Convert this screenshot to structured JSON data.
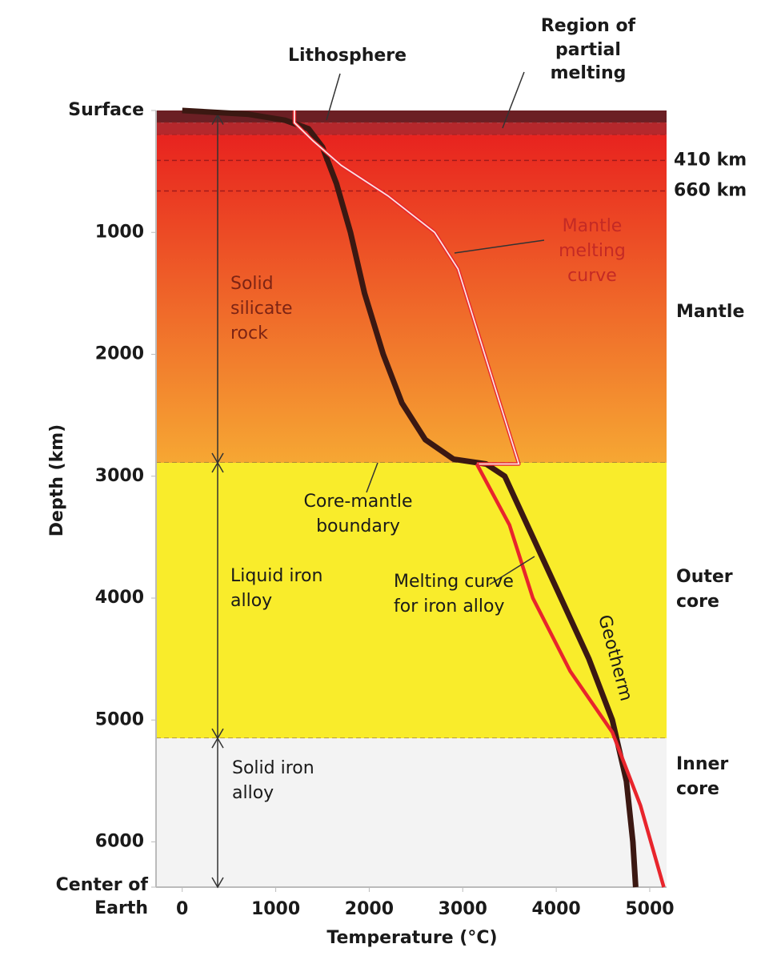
{
  "chart_data": {
    "type": "line",
    "xlabel": "Temperature (°C)",
    "ylabel": "Depth (km)",
    "xlim": [
      -280,
      5180
    ],
    "ylim": [
      0,
      6371
    ],
    "y_inverted": true,
    "xticks": [
      0,
      1000,
      2000,
      3000,
      4000,
      5000
    ],
    "yticks": [
      {
        "value": 0,
        "label": "Surface"
      },
      1000,
      2000,
      3000,
      4000,
      5000,
      6000,
      {
        "value": 6371,
        "label": "Center of Earth"
      }
    ],
    "layers": [
      {
        "name": "Lithosphere",
        "top": 0,
        "bottom": 100,
        "color": "#6b1f24"
      },
      {
        "name": "Region of partial melting",
        "top": 100,
        "bottom": 200,
        "color": "#b5282c"
      },
      {
        "name": "Mantle",
        "top": 200,
        "bottom": 2890,
        "color": [
          "#e8231f",
          "#f6a733"
        ]
      },
      {
        "name": "Outer core",
        "top": 2890,
        "bottom": 5150,
        "color": "#f9ec2b"
      },
      {
        "name": "Inner core",
        "top": 5150,
        "bottom": 6371,
        "color": "#f3f3f3"
      }
    ],
    "boundaries": [
      {
        "value": 410,
        "label": "410 km"
      },
      {
        "value": 660,
        "label": "660 km"
      }
    ],
    "annotations": [
      "Solid silicate rock",
      "Liquid iron alloy",
      "Solid iron alloy",
      "Core-mantle boundary"
    ],
    "series": [
      {
        "name": "Geotherm",
        "color": "#3b1812",
        "x": [
          0,
          700,
          1100,
          1350,
          1500,
          1650,
          1800,
          1950,
          2150,
          2350,
          2600,
          2900,
          3250,
          3450,
          3750,
          4050,
          4350,
          4600,
          4750,
          4820,
          4850
        ],
        "values": [
          0,
          30,
          80,
          150,
          300,
          600,
          1000,
          1500,
          2000,
          2400,
          2700,
          2860,
          2900,
          3000,
          3500,
          4000,
          4500,
          5000,
          5500,
          6000,
          6371
        ]
      },
      {
        "name": "Mantle melting curve",
        "color": "#e8252c",
        "x": [
          1200,
          1200,
          1400,
          1700,
          2200,
          2700,
          2950,
          3600,
          3150
        ],
        "values": [
          0,
          100,
          250,
          450,
          700,
          1000,
          1300,
          2900,
          2900
        ]
      },
      {
        "name": "Melting curve for iron alloy",
        "color": "#e8252c",
        "x": [
          3150,
          3500,
          3750,
          4150,
          4600,
          4900,
          5150
        ],
        "values": [
          2900,
          3400,
          4000,
          4600,
          5100,
          5700,
          6371
        ]
      }
    ]
  }
}
